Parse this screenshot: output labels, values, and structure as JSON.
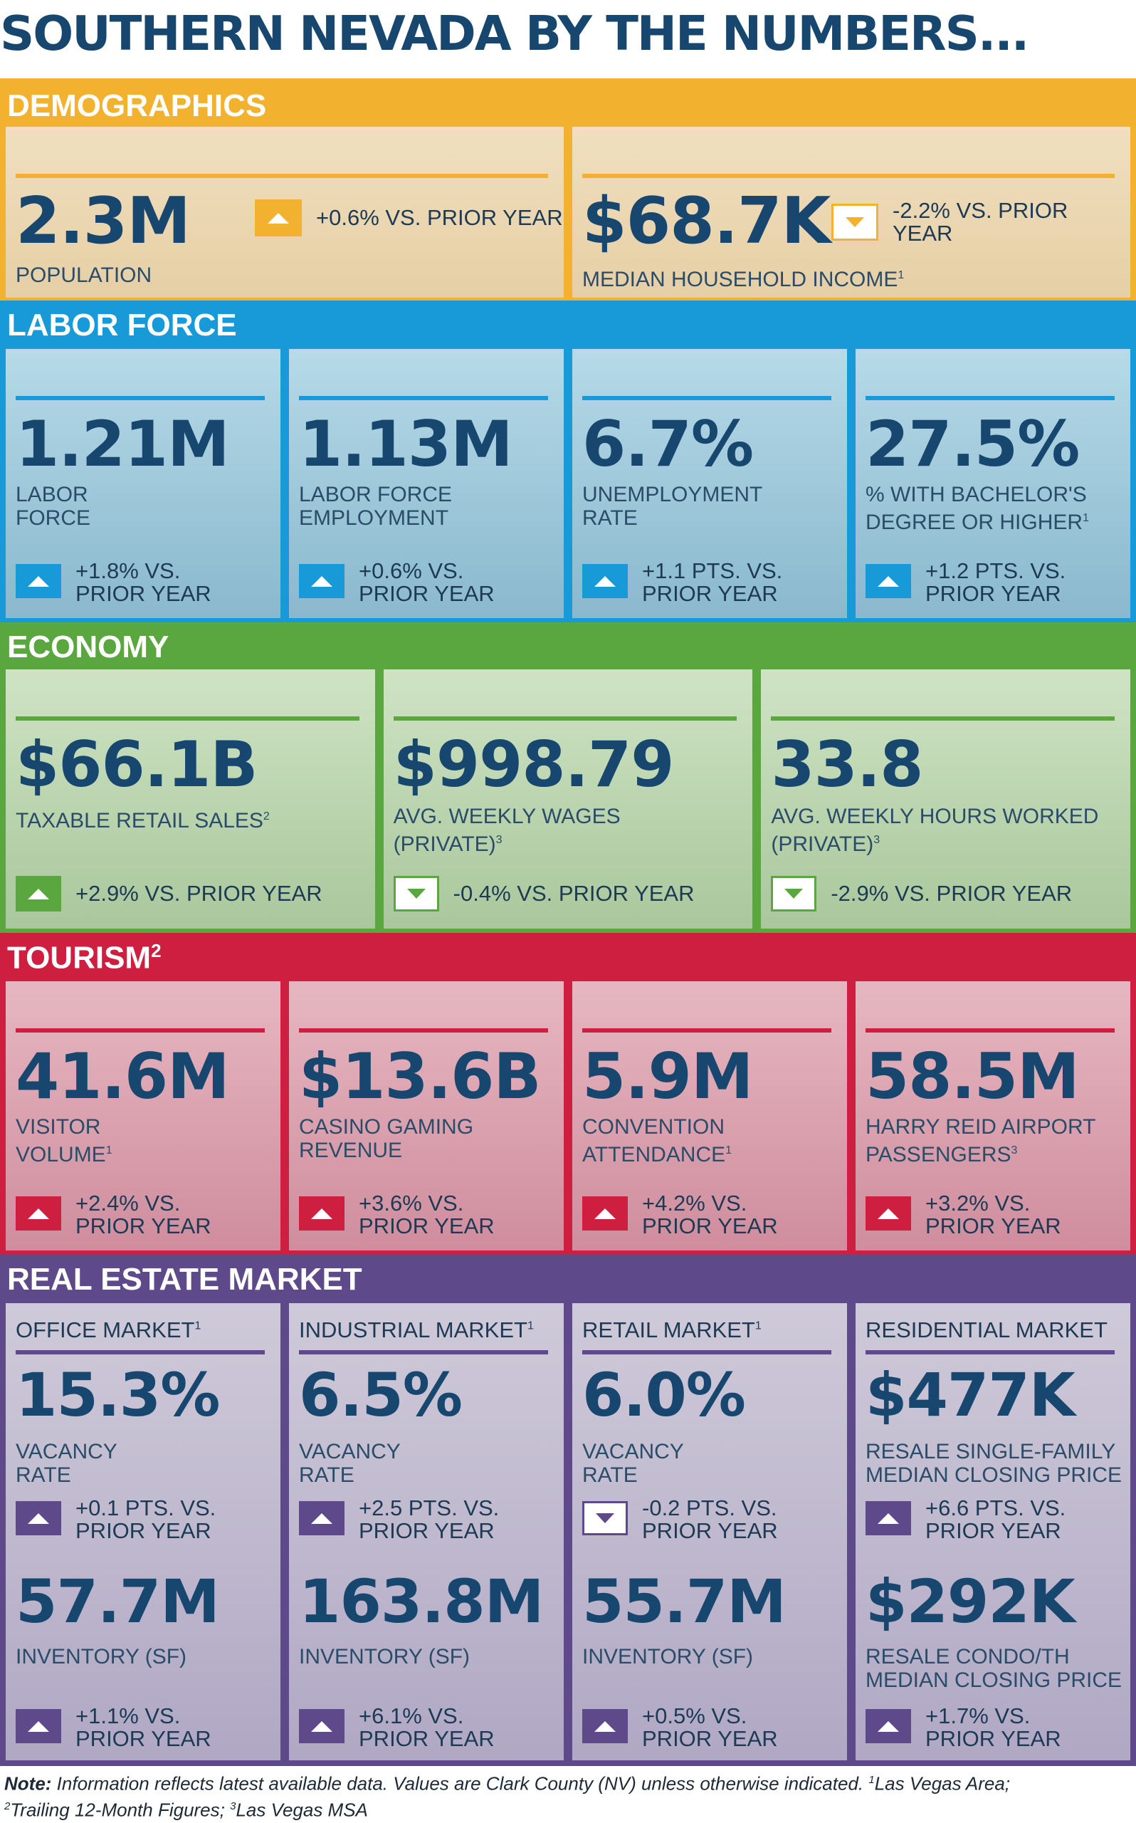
{
  "title": "SOUTHERN NEVADA BY THE NUMBERS...",
  "colors": {
    "navy": "#17466e",
    "demographics": "#f2b12f",
    "labor": "#179ad7",
    "economy": "#5aa63f",
    "tourism": "#cf1f41",
    "real_estate": "#5e4a8a"
  },
  "demographics": {
    "heading": "DEMOGRAPHICS",
    "cards": [
      {
        "value": "2.3M",
        "label": "POPULATION",
        "change": "+0.6% VS. PRIOR YEAR",
        "direction": "up",
        "icon": "up-arrow-icon"
      },
      {
        "value": "$68.7K",
        "label": "MEDIAN HOUSEHOLD INCOME",
        "footnote": "1",
        "change": "-2.2% VS. PRIOR YEAR",
        "direction": "down",
        "icon": "down-arrow-icon"
      }
    ]
  },
  "labor": {
    "heading": "LABOR FORCE",
    "cards": [
      {
        "value": "1.21M",
        "label": "LABOR\nFORCE",
        "change": "+1.8% VS.\nPRIOR YEAR",
        "direction": "up"
      },
      {
        "value": "1.13M",
        "label": "LABOR FORCE\nEMPLOYMENT",
        "change": "+0.6% VS.\nPRIOR YEAR",
        "direction": "up"
      },
      {
        "value": "6.7%",
        "label": "UNEMPLOYMENT\nRATE",
        "change": "+1.1 PTS. VS.\nPRIOR YEAR",
        "direction": "up"
      },
      {
        "value": "27.5%",
        "label": "% WITH BACHELOR'S\nDEGREE OR HIGHER",
        "footnote": "1",
        "change": "+1.2 PTS. VS.\nPRIOR YEAR",
        "direction": "up"
      }
    ]
  },
  "economy": {
    "heading": "ECONOMY",
    "cards": [
      {
        "value": "$66.1B",
        "label": "TAXABLE RETAIL SALES",
        "footnote": "2",
        "change": "+2.9% VS. PRIOR YEAR",
        "direction": "up"
      },
      {
        "value": "$998.79",
        "label": "AVG. WEEKLY WAGES\n(PRIVATE)",
        "footnote": "3",
        "change": "-0.4% VS. PRIOR YEAR",
        "direction": "down"
      },
      {
        "value": "33.8",
        "label": "AVG. WEEKLY HOURS WORKED\n(PRIVATE)",
        "footnote": "3",
        "change": "-2.9% VS. PRIOR YEAR",
        "direction": "down"
      }
    ]
  },
  "tourism": {
    "heading": "TOURISM",
    "heading_footnote": "2",
    "cards": [
      {
        "value": "41.6M",
        "label": "VISITOR\nVOLUME",
        "footnote": "1",
        "change": "+2.4% VS.\nPRIOR YEAR",
        "direction": "up"
      },
      {
        "value": "$13.6B",
        "label": "CASINO GAMING\nREVENUE",
        "change": "+3.6% VS.\nPRIOR YEAR",
        "direction": "up"
      },
      {
        "value": "5.9M",
        "label": "CONVENTION\nATTENDANCE",
        "footnote": "1",
        "change": "+4.2% VS.\nPRIOR YEAR",
        "direction": "up"
      },
      {
        "value": "58.5M",
        "label": "HARRY REID AIRPORT\nPASSENGERS",
        "footnote": "3",
        "change": "+3.2% VS.\nPRIOR YEAR",
        "direction": "up"
      }
    ]
  },
  "real_estate": {
    "heading": "REAL ESTATE MARKET",
    "cards": [
      {
        "header": "OFFICE MARKET",
        "header_footnote": "1",
        "v1": "15.3%",
        "l1": "VACANCY\nRATE",
        "c1": "+0.1 PTS. VS.\nPRIOR YEAR",
        "d1": "up",
        "v2": "57.7M",
        "l2": "INVENTORY (SF)",
        "c2": "+1.1% VS.\nPRIOR YEAR",
        "d2": "up"
      },
      {
        "header": "INDUSTRIAL MARKET",
        "header_footnote": "1",
        "v1": "6.5%",
        "l1": "VACANCY\nRATE",
        "c1": "+2.5 PTS. VS.\nPRIOR YEAR",
        "d1": "up",
        "v2": "163.8M",
        "l2": "INVENTORY (SF)",
        "c2": "+6.1% VS.\nPRIOR YEAR",
        "d2": "up"
      },
      {
        "header": "RETAIL MARKET",
        "header_footnote": "1",
        "v1": "6.0%",
        "l1": "VACANCY\nRATE",
        "c1": "-0.2 PTS. VS.\nPRIOR YEAR",
        "d1": "down",
        "v2": "55.7M",
        "l2": "INVENTORY (SF)",
        "c2": "+0.5% VS.\nPRIOR YEAR",
        "d2": "up"
      },
      {
        "header": "RESIDENTIAL MARKET",
        "v1": "$477K",
        "l1": "RESALE SINGLE-FAMILY\nMEDIAN CLOSING PRICE",
        "c1": "+6.6 PTS. VS.\nPRIOR YEAR",
        "d1": "up",
        "v2": "$292K",
        "l2": "RESALE CONDO/TH\nMEDIAN CLOSING PRICE",
        "c2": "+1.7% VS.\nPRIOR YEAR",
        "d2": "up"
      }
    ]
  },
  "note": {
    "label": "Note:",
    "text": " Information reflects latest available data. Values are Clark County (NV) unless otherwise indicated. ",
    "fn1_mark": "1",
    "fn1": "Las Vegas Area;",
    "fn2_mark": "2",
    "fn2": "Trailing 12-Month Figures; ",
    "fn3_mark": "3",
    "fn3": "Las Vegas MSA"
  }
}
